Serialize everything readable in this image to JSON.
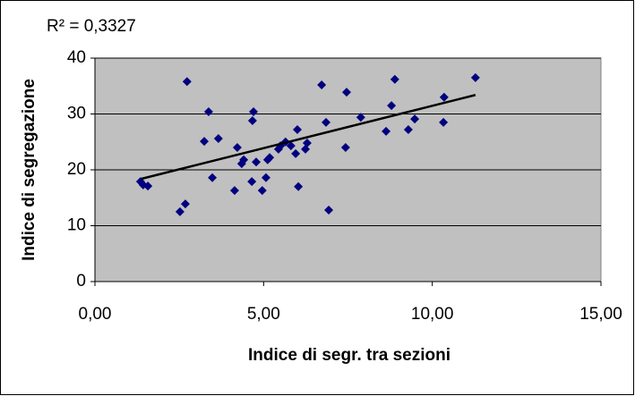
{
  "chart_data": {
    "type": "scatter",
    "annotation": "R² = 0,3327",
    "xlabel": "Indice di segr. tra sezioni",
    "ylabel": "Indice di segregazione",
    "color": "#000080",
    "background": "#c0c0c0",
    "grid": true,
    "xlim": [
      0,
      15
    ],
    "xticks": [
      {
        "value": 0,
        "label": "0,00"
      },
      {
        "value": 5,
        "label": "5,00"
      },
      {
        "value": 10,
        "label": "10,00"
      },
      {
        "value": 15,
        "label": "15,00"
      }
    ],
    "ylim": [
      0,
      40
    ],
    "yticks": [
      0,
      10,
      20,
      30,
      40
    ],
    "x": [
      1.35,
      1.43,
      1.57,
      2.52,
      2.68,
      2.73,
      3.24,
      3.37,
      3.48,
      3.66,
      4.14,
      4.22,
      4.35,
      4.41,
      4.65,
      4.67,
      4.7,
      4.78,
      4.96,
      5.07,
      5.12,
      5.18,
      5.44,
      5.5,
      5.65,
      5.81,
      5.95,
      6.0,
      6.03,
      6.24,
      6.29,
      6.72,
      6.85,
      6.93,
      7.43,
      7.46,
      7.88,
      8.63,
      8.79,
      8.89,
      9.29,
      9.48,
      10.33,
      10.35,
      11.28
    ],
    "values": [
      17.9,
      17.3,
      17.1,
      12.5,
      13.9,
      35.8,
      25.1,
      30.4,
      18.6,
      25.6,
      16.3,
      24.0,
      21.1,
      21.8,
      17.9,
      28.8,
      30.4,
      21.4,
      16.3,
      18.6,
      21.8,
      22.2,
      23.7,
      24.3,
      25.0,
      24.3,
      22.9,
      27.2,
      17.0,
      23.7,
      24.8,
      35.2,
      28.5,
      12.8,
      24.0,
      33.9,
      29.4,
      26.9,
      31.5,
      36.2,
      27.2,
      29.1,
      28.5,
      33.0,
      36.5
    ],
    "trendline": {
      "color": "#000000",
      "x": [
        1.38,
        11.28
      ],
      "values": [
        18.4,
        33.4
      ]
    }
  }
}
